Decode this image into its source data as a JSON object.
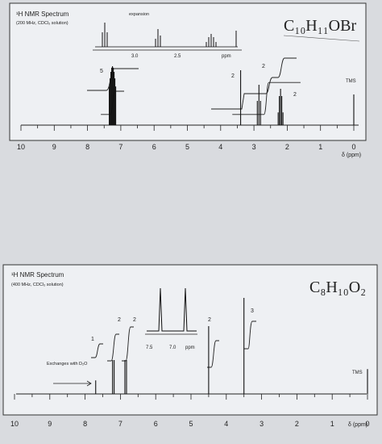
{
  "chart_data": [
    {
      "type": "line",
      "title": "¹H NMR Spectrum",
      "subtitle": "(200 MHz, CDCl₃ solution)",
      "formula": "C₁₀H₁₁OBr",
      "xlabel": "δ (ppm)",
      "xlim": [
        10.5,
        -0.4
      ],
      "xticks": [
        "10",
        "9",
        "8",
        "7",
        "6",
        "5",
        "4",
        "3",
        "2",
        "1",
        "0"
      ],
      "reference_label": "TMS",
      "peaks": [
        {
          "ppm": 7.25,
          "height": 0.73,
          "multiplet": "m"
        },
        {
          "ppm": 3.4,
          "height": 0.68,
          "multiplet": "s"
        },
        {
          "ppm": 2.85,
          "height": 0.5,
          "multiplet": "t"
        },
        {
          "ppm": 2.2,
          "height": 0.45,
          "multiplet": "quintet"
        },
        {
          "ppm": 0.0,
          "height": 0.38,
          "multiplet": "s"
        }
      ],
      "integrals": [
        {
          "ppm_start": 7.6,
          "ppm_end": 6.9,
          "value": "5",
          "level_low": 0.22,
          "level_high": 0.7
        },
        {
          "ppm_start": 3.65,
          "ppm_end": 1.6,
          "value": "2",
          "level_low": 0.22,
          "level_high": 0.88
        }
      ],
      "integral_labels": [
        "5",
        "2",
        "2",
        "2"
      ],
      "inset": {
        "title": "expansion",
        "xlabel": "ppm",
        "xticks": [
          "3.0",
          "2.5"
        ],
        "multiplets": [
          "t",
          "quintet",
          "t"
        ]
      }
    },
    {
      "type": "line",
      "title": "¹H NMR Spectrum",
      "subtitle": "(400 MHz, CDCl₃ solution)",
      "formula": "C₈H₁₀O₂",
      "xlabel": "δ (ppm)",
      "xlim": [
        10.5,
        -0.4
      ],
      "xticks": [
        "10",
        "9",
        "8",
        "7",
        "6",
        "5",
        "4",
        "3",
        "2",
        "1",
        "0"
      ],
      "reference_label": "TMS",
      "annotation": "Exchanges with D₂O",
      "peaks": [
        {
          "ppm": 7.7,
          "height": 0.12,
          "multiplet": "s"
        },
        {
          "ppm": 7.2,
          "height": 0.3,
          "multiplet": "d"
        },
        {
          "ppm": 6.85,
          "height": 0.3,
          "multiplet": "d"
        },
        {
          "ppm": 4.5,
          "height": 0.6,
          "multiplet": "s"
        },
        {
          "ppm": 3.5,
          "height": 0.85,
          "multiplet": "s"
        },
        {
          "ppm": 0.0,
          "height": 0.22,
          "multiplet": "s"
        }
      ],
      "integral_labels": [
        "1",
        "2",
        "2",
        "2",
        "3"
      ],
      "inset": {
        "xlabel": "ppm",
        "xticks": [
          "7.5",
          "7.0"
        ]
      }
    }
  ]
}
